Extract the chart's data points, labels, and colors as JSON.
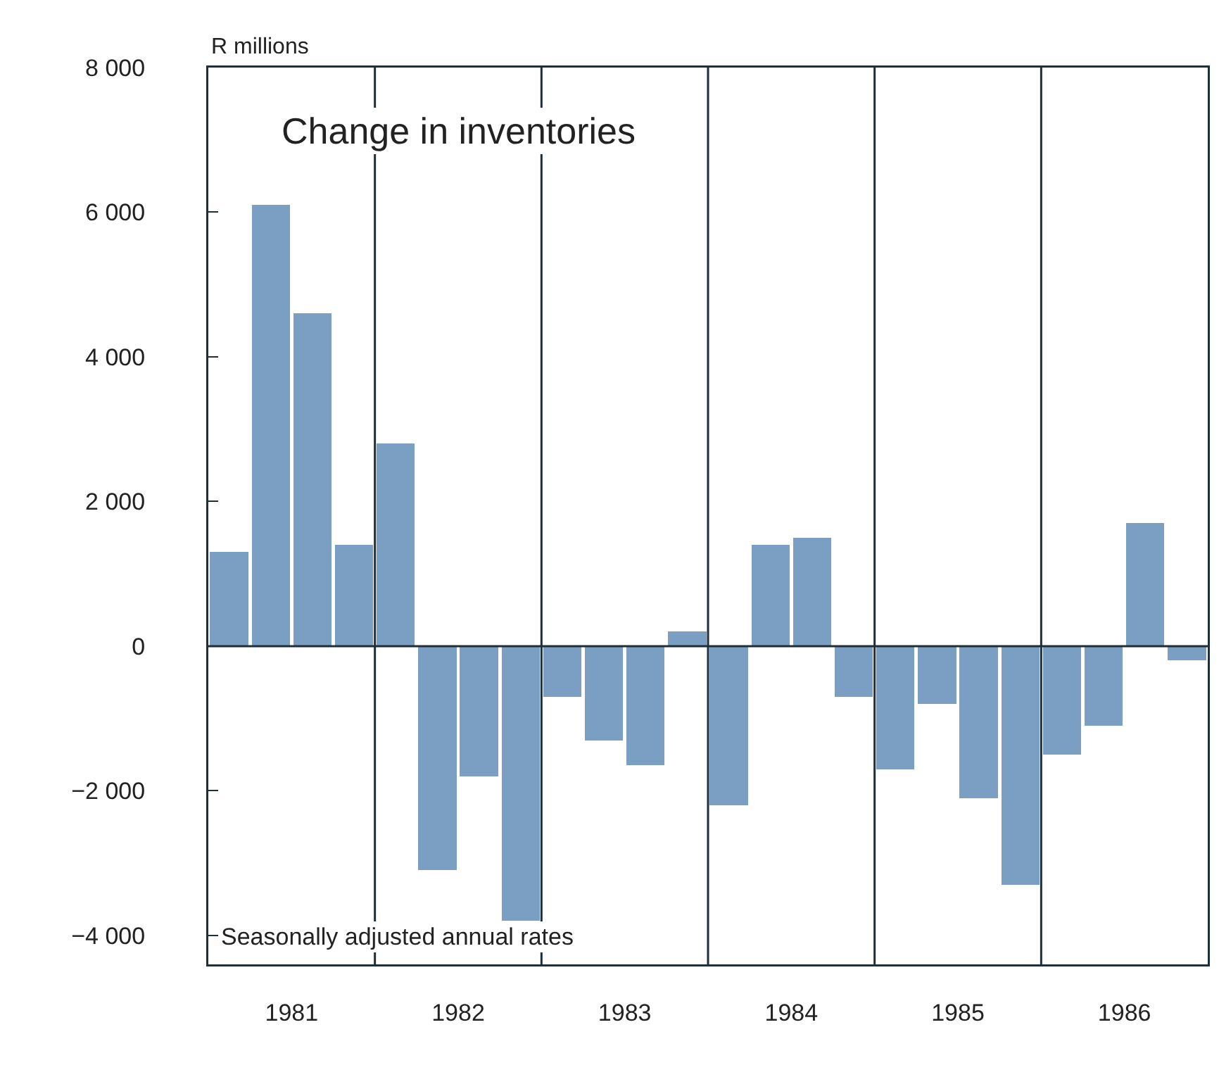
{
  "chart_data": {
    "type": "bar",
    "title": "Change in inventories",
    "ylabel": "R millions",
    "annotations": [
      "Seasonally adjusted annual rates"
    ],
    "x": [
      1981.125,
      1981.375,
      1981.625,
      1981.875,
      1982.125,
      1982.375,
      1982.625,
      1982.875,
      1983.125,
      1983.375,
      1983.625,
      1983.875,
      1984.125,
      1984.375,
      1984.625,
      1984.875,
      1985.125,
      1985.375,
      1985.625,
      1985.875,
      1986.125,
      1986.375,
      1986.625,
      1986.875
    ],
    "values": [
      1300,
      6100,
      4600,
      1400,
      2800,
      -3100,
      -1800,
      -3800,
      -700,
      -1300,
      -1650,
      200,
      -2200,
      1400,
      1500,
      -700,
      -1700,
      -800,
      -2100,
      -3300,
      -1500,
      -1100,
      1700,
      -200
    ],
    "color": "#7a9fc2",
    "xlim": [
      1981,
      1987
    ],
    "xticks": [
      {
        "value": 1981.5,
        "label": "1981"
      },
      {
        "value": 1982.5,
        "label": "1982"
      },
      {
        "value": 1983.5,
        "label": "1983"
      },
      {
        "value": 1984.5,
        "label": "1984"
      },
      {
        "value": 1985.5,
        "label": "1985"
      },
      {
        "value": 1986.5,
        "label": "1986"
      }
    ],
    "ylim": [
      -4400,
      8000
    ],
    "yticks": [
      {
        "value": -4000,
        "label": "−4 000"
      },
      {
        "value": -2000,
        "label": "−2 000"
      },
      0,
      {
        "value": 2000,
        "label": "2 000"
      },
      {
        "value": 4000,
        "label": "4 000"
      },
      {
        "value": 6000,
        "label": "6 000"
      },
      {
        "value": 8000,
        "label": "8 000"
      }
    ],
    "ref_lines": [
      {
        "axis": "y",
        "value": 0
      },
      {
        "axis": "x",
        "value": 1982
      },
      {
        "axis": "x",
        "value": 1983
      },
      {
        "axis": "x",
        "value": 1984
      },
      {
        "axis": "x",
        "value": 1985
      },
      {
        "axis": "x",
        "value": 1986
      }
    ],
    "grid": false
  }
}
